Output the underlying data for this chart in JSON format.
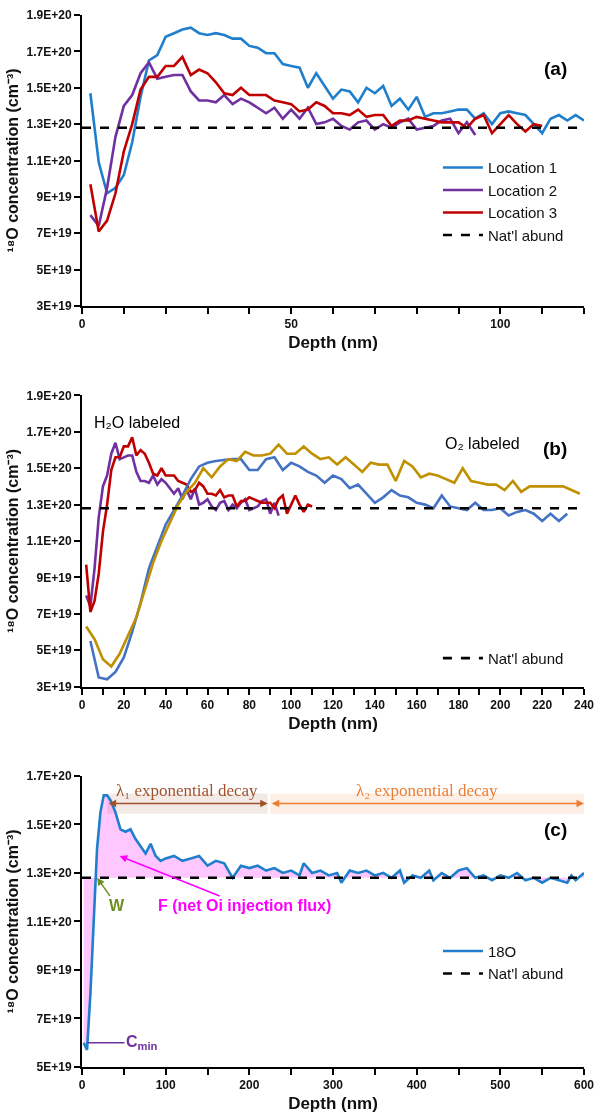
{
  "chart_data": [
    {
      "type": "line",
      "xlabel": "Depth (nm)",
      "ylabel": "¹⁸O concentration (cm⁻³)",
      "annotations": [
        "(a)"
      ],
      "xlim": [
        0,
        120
      ],
      "xticks": [
        0,
        {
          "value": 10,
          "label": null
        },
        {
          "value": 20,
          "label": null
        },
        {
          "value": 30,
          "label": null
        },
        {
          "value": 40,
          "label": null
        },
        50,
        {
          "value": 60,
          "label": null
        },
        {
          "value": 70,
          "label": null
        },
        {
          "value": 80,
          "label": null
        },
        {
          "value": 90,
          "label": null
        },
        100,
        {
          "value": 110,
          "label": null
        },
        {
          "value": 120,
          "label": null
        }
      ],
      "ylim": [
        3e+19,
        1.9e+20
      ],
      "yticks": [
        {
          "value": 3e+19,
          "label": "3E+19"
        },
        {
          "value": 5e+19,
          "label": "5E+19"
        },
        {
          "value": 7e+19,
          "label": "7E+19"
        },
        {
          "value": 9e+19,
          "label": "9E+19"
        },
        {
          "value": 1.1e+20,
          "label": "1.1E+20"
        },
        {
          "value": 1.3e+20,
          "label": "1.3E+20"
        },
        {
          "value": 1.5e+20,
          "label": "1.5E+20"
        },
        {
          "value": 1.7e+20,
          "label": "1.7E+20"
        },
        {
          "value": 1.9e+20,
          "label": "1.9E+20"
        }
      ],
      "grid": false,
      "legend": "right",
      "marker": "none",
      "series": [
        {
          "name": "Location 1",
          "color": "#1f7fcc",
          "x": [
            2,
            4,
            6,
            8,
            10,
            12,
            14,
            16,
            18,
            20,
            22,
            24,
            26,
            28,
            30,
            32,
            34,
            36,
            38,
            40,
            42,
            44,
            46,
            48,
            50,
            52,
            54,
            56,
            58,
            60,
            62,
            64,
            66,
            68,
            70,
            72,
            74,
            76,
            78,
            80,
            82,
            84,
            86,
            88,
            90,
            92,
            94,
            96,
            98,
            100,
            102,
            104,
            106,
            108,
            110,
            112,
            114,
            116,
            118,
            120
          ],
          "values": [
            1.47e+20,
            1.09e+20,
            9.2e+19,
            9.5e+19,
            1.02e+20,
            1.2e+20,
            1.45e+20,
            1.65e+20,
            1.68e+20,
            1.78e+20,
            1.8e+20,
            1.82e+20,
            1.83e+20,
            1.8e+20,
            1.79e+20,
            1.8e+20,
            1.79e+20,
            1.77e+20,
            1.77e+20,
            1.73e+20,
            1.72e+20,
            1.69e+20,
            1.69e+20,
            1.63e+20,
            1.62e+20,
            1.61e+20,
            1.5e+20,
            1.58e+20,
            1.51e+20,
            1.44e+20,
            1.49e+20,
            1.48e+20,
            1.42e+20,
            1.5e+20,
            1.47e+20,
            1.51e+20,
            1.4e+20,
            1.44e+20,
            1.38e+20,
            1.45e+20,
            1.34e+20,
            1.36e+20,
            1.36e+20,
            1.37e+20,
            1.38e+20,
            1.38e+20,
            1.33e+20,
            1.36e+20,
            1.3e+20,
            1.36e+20,
            1.37e+20,
            1.36e+20,
            1.35e+20,
            1.3e+20,
            1.25e+20,
            1.33e+20,
            1.35e+20,
            1.32e+20,
            1.35e+20,
            1.32e+20
          ]
        },
        {
          "name": "Location 2",
          "color": "#7030a0",
          "x": [
            2,
            4,
            6,
            8,
            10,
            12,
            14,
            16,
            18,
            20,
            22,
            24,
            26,
            28,
            30,
            32,
            34,
            36,
            38,
            40,
            42,
            44,
            46,
            48,
            50,
            52,
            54,
            56,
            58,
            60,
            62,
            64,
            66,
            68,
            70,
            72,
            74,
            76,
            78,
            80,
            82,
            84,
            86,
            88,
            90,
            92,
            94
          ],
          "values": [
            8e+19,
            7.4e+19,
            9.5e+19,
            1.23e+20,
            1.4e+20,
            1.46e+20,
            1.58e+20,
            1.64e+20,
            1.55e+20,
            1.56e+20,
            1.57e+20,
            1.57e+20,
            1.48e+20,
            1.43e+20,
            1.43e+20,
            1.42e+20,
            1.46e+20,
            1.41e+20,
            1.44e+20,
            1.42e+20,
            1.39e+20,
            1.36e+20,
            1.39e+20,
            1.33e+20,
            1.38e+20,
            1.33e+20,
            1.39e+20,
            1.3e+20,
            1.31e+20,
            1.33e+20,
            1.29e+20,
            1.27e+20,
            1.31e+20,
            1.32e+20,
            1.27e+20,
            1.3e+20,
            1.28e+20,
            1.31e+20,
            1.33e+20,
            1.27e+20,
            1.28e+20,
            1.29e+20,
            1.32e+20,
            1.33e+20,
            1.25e+20,
            1.31e+20,
            1.24e+20
          ]
        },
        {
          "name": "Location 3",
          "color": "#c00000",
          "x": [
            2,
            4,
            6,
            8,
            10,
            12,
            14,
            16,
            18,
            20,
            22,
            24,
            26,
            28,
            30,
            32,
            34,
            36,
            38,
            40,
            42,
            44,
            46,
            48,
            50,
            52,
            54,
            56,
            58,
            60,
            62,
            64,
            66,
            68,
            70,
            72,
            74,
            76,
            78,
            80,
            82,
            84,
            86,
            88,
            90,
            92,
            94,
            96,
            98,
            100,
            102,
            104,
            106,
            108,
            110
          ],
          "values": [
            9.7e+19,
            7.1e+19,
            7.7e+19,
            9.2e+19,
            1.15e+20,
            1.3e+20,
            1.49e+20,
            1.56e+20,
            1.56e+20,
            1.62e+20,
            1.62e+20,
            1.67e+20,
            1.57e+20,
            1.6e+20,
            1.58e+20,
            1.53e+20,
            1.47e+20,
            1.46e+20,
            1.5e+20,
            1.46e+20,
            1.46e+20,
            1.46e+20,
            1.43e+20,
            1.42e+20,
            1.41e+20,
            1.37e+20,
            1.38e+20,
            1.42e+20,
            1.4e+20,
            1.36e+20,
            1.36e+20,
            1.35e+20,
            1.38e+20,
            1.34e+20,
            1.35e+20,
            1.35e+20,
            1.29e+20,
            1.32e+20,
            1.32e+20,
            1.34e+20,
            1.33e+20,
            1.32e+20,
            1.31e+20,
            1.31e+20,
            1.31e+20,
            1.28e+20,
            1.33e+20,
            1.35e+20,
            1.25e+20,
            1.3e+20,
            1.35e+20,
            1.3e+20,
            1.26e+20,
            1.3e+20,
            1.29e+20
          ]
        },
        {
          "name": "Nat'l abund",
          "color": "#000000",
          "line_style": "dashed",
          "x": [
            0,
            120
          ],
          "values": [
            1.28e+20,
            1.28e+20
          ]
        }
      ]
    },
    {
      "type": "line",
      "xlabel": "Depth (nm)",
      "ylabel": "¹⁸O concentration (cm⁻³)",
      "annotations": [
        "(b)",
        "H₂O labeled",
        "O₂ labeled"
      ],
      "xlim": [
        0,
        240
      ],
      "xticks": [
        0,
        {
          "value": 10,
          "label": null
        },
        20,
        {
          "value": 30,
          "label": null
        },
        40,
        {
          "value": 50,
          "label": null
        },
        60,
        {
          "value": 70,
          "label": null
        },
        80,
        {
          "value": 90,
          "label": null
        },
        100,
        {
          "value": 110,
          "label": null
        },
        120,
        {
          "value": 130,
          "label": null
        },
        140,
        {
          "value": 150,
          "label": null
        },
        160,
        {
          "value": 170,
          "label": null
        },
        180,
        {
          "value": 190,
          "label": null
        },
        200,
        {
          "value": 210,
          "label": null
        },
        220,
        {
          "value": 230,
          "label": null
        },
        240
      ],
      "ylim": [
        3e+19,
        1.9e+20
      ],
      "yticks": [
        {
          "value": 3e+19,
          "label": "3E+19"
        },
        {
          "value": 5e+19,
          "label": "5E+19"
        },
        {
          "value": 7e+19,
          "label": "7E+19"
        },
        {
          "value": 9e+19,
          "label": "9E+19"
        },
        {
          "value": 1.1e+20,
          "label": "1.1E+20"
        },
        {
          "value": 1.3e+20,
          "label": "1.3E+20"
        },
        {
          "value": 1.5e+20,
          "label": "1.5E+20"
        },
        {
          "value": 1.7e+20,
          "label": "1.7E+20"
        },
        {
          "value": 1.9e+20,
          "label": "1.9E+20"
        }
      ],
      "grid": false,
      "legend": "bottom right",
      "marker": "none",
      "series": [
        {
          "color": "#7030a0",
          "x": [
            2,
            4,
            6,
            8,
            10,
            12,
            14,
            16,
            18,
            20,
            22,
            24,
            26,
            28,
            30,
            32,
            34,
            36,
            38,
            40,
            42,
            44,
            46,
            48,
            50,
            52,
            54,
            56,
            58,
            60,
            62,
            64,
            66,
            68,
            70,
            72,
            74,
            76,
            78,
            80,
            82,
            84,
            86,
            88,
            90,
            92,
            94
          ],
          "values": [
            8e+19,
            7.4e+19,
            9.5e+19,
            1.23e+20,
            1.4e+20,
            1.46e+20,
            1.58e+20,
            1.64e+20,
            1.55e+20,
            1.56e+20,
            1.57e+20,
            1.57e+20,
            1.48e+20,
            1.43e+20,
            1.43e+20,
            1.42e+20,
            1.46e+20,
            1.41e+20,
            1.44e+20,
            1.42e+20,
            1.39e+20,
            1.36e+20,
            1.39e+20,
            1.33e+20,
            1.38e+20,
            1.33e+20,
            1.39e+20,
            1.3e+20,
            1.31e+20,
            1.33e+20,
            1.29e+20,
            1.27e+20,
            1.31e+20,
            1.32e+20,
            1.27e+20,
            1.3e+20,
            1.28e+20,
            1.31e+20,
            1.33e+20,
            1.27e+20,
            1.28e+20,
            1.29e+20,
            1.32e+20,
            1.33e+20,
            1.25e+20,
            1.31e+20,
            1.24e+20
          ]
        },
        {
          "color": "#c00000",
          "x": [
            2,
            4,
            6,
            8,
            10,
            12,
            14,
            16,
            18,
            20,
            22,
            24,
            26,
            28,
            30,
            32,
            34,
            36,
            38,
            40,
            42,
            44,
            46,
            48,
            50,
            52,
            54,
            56,
            58,
            60,
            62,
            64,
            66,
            68,
            70,
            72,
            74,
            76,
            78,
            80,
            82,
            84,
            86,
            88,
            90,
            92,
            94,
            96,
            98,
            100,
            102,
            104,
            106,
            108,
            110
          ],
          "values": [
            9.7e+19,
            7.1e+19,
            7.7e+19,
            9.2e+19,
            1.15e+20,
            1.3e+20,
            1.49e+20,
            1.56e+20,
            1.56e+20,
            1.62e+20,
            1.62e+20,
            1.67e+20,
            1.57e+20,
            1.6e+20,
            1.58e+20,
            1.53e+20,
            1.47e+20,
            1.46e+20,
            1.5e+20,
            1.46e+20,
            1.46e+20,
            1.46e+20,
            1.43e+20,
            1.42e+20,
            1.41e+20,
            1.37e+20,
            1.38e+20,
            1.42e+20,
            1.4e+20,
            1.36e+20,
            1.36e+20,
            1.35e+20,
            1.38e+20,
            1.34e+20,
            1.35e+20,
            1.35e+20,
            1.29e+20,
            1.32e+20,
            1.32e+20,
            1.34e+20,
            1.33e+20,
            1.32e+20,
            1.31e+20,
            1.31e+20,
            1.31e+20,
            1.28e+20,
            1.33e+20,
            1.35e+20,
            1.25e+20,
            1.3e+20,
            1.35e+20,
            1.3e+20,
            1.26e+20,
            1.3e+20,
            1.29e+20
          ]
        },
        {
          "color": "#4472c4",
          "x": [
            4,
            8,
            12,
            16,
            20,
            24,
            28,
            32,
            36,
            40,
            44,
            48,
            52,
            56,
            60,
            64,
            68,
            72,
            76,
            80,
            84,
            88,
            92,
            96,
            100,
            104,
            108,
            112,
            116,
            120,
            124,
            128,
            132,
            136,
            140,
            144,
            148,
            152,
            156,
            160,
            164,
            168,
            172,
            176,
            180,
            184,
            188,
            192,
            196,
            200,
            204,
            208,
            212,
            216,
            220,
            224,
            228,
            232
          ],
          "values": [
            5.5e+19,
            3.5e+19,
            3.4e+19,
            3.8e+19,
            4.6e+19,
            6e+19,
            7.6e+19,
            9.5e+19,
            1.07e+20,
            1.19e+20,
            1.27e+20,
            1.35e+20,
            1.44e+20,
            1.51e+20,
            1.53e+20,
            1.54e+20,
            1.545e+20,
            1.55e+20,
            1.55e+20,
            1.49e+20,
            1.49e+20,
            1.55e+20,
            1.56e+20,
            1.49e+20,
            1.53e+20,
            1.51e+20,
            1.48e+20,
            1.46e+20,
            1.42e+20,
            1.46e+20,
            1.44e+20,
            1.39e+20,
            1.41e+20,
            1.36e+20,
            1.31e+20,
            1.34e+20,
            1.38e+20,
            1.35e+20,
            1.34e+20,
            1.31e+20,
            1.3e+20,
            1.28e+20,
            1.35e+20,
            1.29e+20,
            1.28e+20,
            1.27e+20,
            1.31e+20,
            1.27e+20,
            1.27e+20,
            1.28e+20,
            1.24e+20,
            1.26e+20,
            1.27e+20,
            1.25e+20,
            1.21e+20,
            1.25e+20,
            1.21e+20,
            1.25e+20
          ]
        },
        {
          "color": "#bf9000",
          "x": [
            2,
            6,
            10,
            14,
            18,
            22,
            26,
            30,
            34,
            38,
            42,
            46,
            50,
            54,
            58,
            62,
            66,
            70,
            74,
            78,
            82,
            86,
            90,
            94,
            98,
            102,
            106,
            110,
            114,
            118,
            122,
            126,
            130,
            134,
            138,
            142,
            146,
            150,
            154,
            158,
            162,
            166,
            170,
            174,
            178,
            182,
            186,
            190,
            194,
            198,
            202,
            206,
            210,
            214,
            218,
            222,
            226,
            230,
            234,
            238
          ],
          "values": [
            6.3e+19,
            5.6e+19,
            4.5e+19,
            4.1e+19,
            4.8e+19,
            5.8e+19,
            6.8e+19,
            8.3e+19,
            9.8e+19,
            1.1e+20,
            1.2e+20,
            1.3e+20,
            1.37e+20,
            1.42e+20,
            1.5e+20,
            1.45e+20,
            1.51e+20,
            1.55e+20,
            1.54e+20,
            1.59e+20,
            1.57e+20,
            1.57e+20,
            1.58e+20,
            1.63e+20,
            1.58e+20,
            1.58e+20,
            1.62e+20,
            1.58e+20,
            1.55e+20,
            1.56e+20,
            1.52e+20,
            1.56e+20,
            1.52e+20,
            1.48e+20,
            1.53e+20,
            1.52e+20,
            1.52e+20,
            1.43e+20,
            1.54e+20,
            1.51e+20,
            1.45e+20,
            1.47e+20,
            1.46e+20,
            1.44e+20,
            1.42e+20,
            1.5e+20,
            1.43e+20,
            1.42e+20,
            1.41e+20,
            1.41e+20,
            1.38e+20,
            1.43e+20,
            1.37e+20,
            1.4e+20,
            1.4e+20,
            1.4e+20,
            1.4e+20,
            1.4e+20,
            1.38e+20,
            1.36e+20
          ]
        },
        {
          "name": "Nat'l abund",
          "color": "#000000",
          "line_style": "dashed",
          "x": [
            0,
            240
          ],
          "values": [
            1.28e+20,
            1.28e+20
          ]
        }
      ]
    },
    {
      "type": "line",
      "xlabel": "Depth (nm)",
      "ylabel": "¹⁸O concentration (cm⁻³)",
      "annotations": [
        "(c)",
        {
          "text": "W",
          "x": 18,
          "y": 1.28e+20
        },
        {
          "text": "F (net Oi injection flux)",
          "x": 45,
          "y": 1.37e+20
        },
        {
          "text": "C$_{min}$",
          "x": 6,
          "y": 6e+19
        }
      ],
      "bands": [
        {
          "axis": "x",
          "from": 30,
          "to": 222,
          "label": "λ₁ exponential decay",
          "color": "#a0522d"
        },
        {
          "axis": "x",
          "from": 225,
          "to": 600,
          "label": "λ₂ exponential decay",
          "color": "#ed7d31"
        }
      ],
      "xlim": [
        0,
        600
      ],
      "xticks": [
        0,
        {
          "value": 50,
          "label": null
        },
        100,
        {
          "value": 150,
          "label": null
        },
        200,
        {
          "value": 250,
          "label": null
        },
        300,
        {
          "value": 350,
          "label": null
        },
        400,
        {
          "value": 450,
          "label": null
        },
        500,
        {
          "value": 550,
          "label": null
        },
        600
      ],
      "ylim": [
        5e+19,
        1.7e+20
      ],
      "yticks": [
        {
          "value": 5e+19,
          "label": "5E+19"
        },
        {
          "value": 7e+19,
          "label": "7E+19"
        },
        {
          "value": 9e+19,
          "label": "9E+19"
        },
        {
          "value": 1.1e+20,
          "label": "1.1E+20"
        },
        {
          "value": 1.3e+20,
          "label": "1.3E+20"
        },
        {
          "value": 1.5e+20,
          "label": "1.5E+20"
        },
        {
          "value": 1.7e+20,
          "label": "1.7E+20"
        }
      ],
      "grid": false,
      "legend": "right",
      "marker": "none",
      "series": [
        {
          "name": "18O",
          "color": "#1f7fcc",
          "x": [
            2,
            6,
            10,
            14,
            18,
            22,
            26,
            30,
            34,
            40,
            46,
            52,
            58,
            64,
            70,
            76,
            82,
            88,
            94,
            100,
            110,
            120,
            130,
            140,
            150,
            160,
            170,
            180,
            190,
            200,
            210,
            220,
            230,
            240,
            250,
            260,
            265,
            275,
            285,
            295,
            305,
            310,
            320,
            330,
            340,
            350,
            360,
            370,
            380,
            385,
            395,
            405,
            415,
            420,
            430,
            440,
            450,
            460,
            470,
            480,
            490,
            500,
            510,
            520,
            530,
            540,
            550,
            560,
            570,
            580,
            585,
            590,
            600
          ],
          "values": [
            6e+19,
            5.7e+19,
            8e+19,
            1.1e+20,
            1.4e+20,
            1.55e+20,
            1.62e+20,
            1.62e+20,
            1.6e+20,
            1.55e+20,
            1.48e+20,
            1.47e+20,
            1.48e+20,
            1.44e+20,
            1.41e+20,
            1.38e+20,
            1.42e+20,
            1.37e+20,
            1.35e+20,
            1.36e+20,
            1.37e+20,
            1.35e+20,
            1.36e+20,
            1.37e+20,
            1.33e+20,
            1.35e+20,
            1.34e+20,
            1.28e+20,
            1.33e+20,
            1.32e+20,
            1.33e+20,
            1.31e+20,
            1.32e+20,
            1.3e+20,
            1.31e+20,
            1.29e+20,
            1.34e+20,
            1.3e+20,
            1.31e+20,
            1.29e+20,
            1.3e+20,
            1.26e+20,
            1.31e+20,
            1.3e+20,
            1.31e+20,
            1.29e+20,
            1.3e+20,
            1.28e+20,
            1.31e+20,
            1.26e+20,
            1.29e+20,
            1.28e+20,
            1.31e+20,
            1.27e+20,
            1.3e+20,
            1.28e+20,
            1.31e+20,
            1.32e+20,
            1.28e+20,
            1.29e+20,
            1.27e+20,
            1.29e+20,
            1.28e+20,
            1.3e+20,
            1.27e+20,
            1.28e+20,
            1.26e+20,
            1.28e+20,
            1.27e+20,
            1.26e+20,
            1.29e+20,
            1.27e+20,
            1.3e+20
          ],
          "lower": [
            1.28e+20,
            1.28e+20,
            1.28e+20,
            1.28e+20,
            1.28e+20,
            1.28e+20,
            1.28e+20,
            1.28e+20,
            1.28e+20,
            1.28e+20,
            1.28e+20,
            1.28e+20,
            1.28e+20,
            1.28e+20,
            1.28e+20,
            1.28e+20,
            1.28e+20,
            1.28e+20,
            1.28e+20,
            1.28e+20,
            1.28e+20,
            1.28e+20,
            1.28e+20,
            1.28e+20,
            1.28e+20,
            1.28e+20,
            1.28e+20,
            1.28e+20,
            1.28e+20,
            1.28e+20,
            1.28e+20,
            1.28e+20,
            1.28e+20,
            1.28e+20,
            1.28e+20,
            1.28e+20,
            1.28e+20,
            1.28e+20,
            1.28e+20,
            1.28e+20,
            1.28e+20,
            1.28e+20,
            1.28e+20,
            1.28e+20,
            1.28e+20,
            1.28e+20,
            1.28e+20,
            1.28e+20,
            1.28e+20,
            1.28e+20,
            1.28e+20,
            1.28e+20,
            1.28e+20,
            1.28e+20,
            1.28e+20,
            1.28e+20,
            1.28e+20,
            1.28e+20,
            1.28e+20,
            1.28e+20,
            1.28e+20,
            1.28e+20,
            1.28e+20,
            1.28e+20,
            1.28e+20,
            1.28e+20,
            1.28e+20,
            1.28e+20,
            1.28e+20,
            1.28e+20,
            1.28e+20,
            1.28e+20,
            1.28e+20
          ],
          "upper": [
            6e+19,
            5.7e+19,
            8e+19,
            1.1e+20,
            1.4e+20,
            1.55e+20,
            1.62e+20,
            1.62e+20,
            1.6e+20,
            1.55e+20,
            1.48e+20,
            1.47e+20,
            1.48e+20,
            1.44e+20,
            1.41e+20,
            1.38e+20,
            1.42e+20,
            1.37e+20,
            1.35e+20,
            1.36e+20,
            1.37e+20,
            1.35e+20,
            1.36e+20,
            1.37e+20,
            1.33e+20,
            1.35e+20,
            1.34e+20,
            1.28e+20,
            1.33e+20,
            1.32e+20,
            1.33e+20,
            1.31e+20,
            1.32e+20,
            1.3e+20,
            1.31e+20,
            1.29e+20,
            1.34e+20,
            1.3e+20,
            1.31e+20,
            1.29e+20,
            1.3e+20,
            1.26e+20,
            1.31e+20,
            1.3e+20,
            1.31e+20,
            1.29e+20,
            1.3e+20,
            1.28e+20,
            1.31e+20,
            1.26e+20,
            1.29e+20,
            1.28e+20,
            1.31e+20,
            1.27e+20,
            1.3e+20,
            1.28e+20,
            1.31e+20,
            1.32e+20,
            1.28e+20,
            1.29e+20,
            1.27e+20,
            1.29e+20,
            1.28e+20,
            1.3e+20,
            1.27e+20,
            1.28e+20,
            1.26e+20,
            1.28e+20,
            1.27e+20,
            1.26e+20,
            1.29e+20,
            1.27e+20,
            1.3e+20
          ]
        },
        {
          "name": "Nat'l abund",
          "color": "#000000",
          "line_style": "dashed",
          "x": [
            0,
            600
          ],
          "values": [
            1.28e+20,
            1.28e+20
          ]
        }
      ]
    }
  ]
}
